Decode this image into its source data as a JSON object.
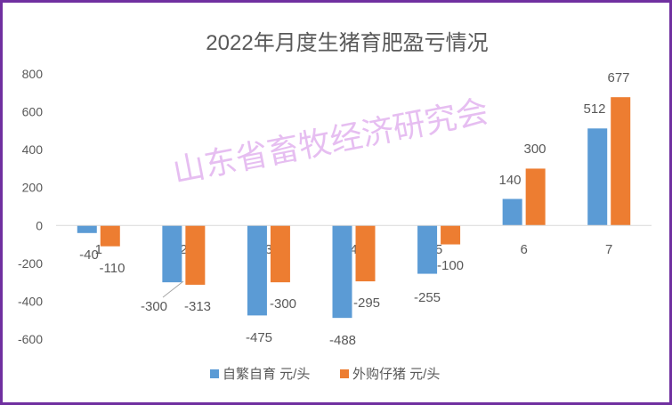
{
  "chart_data": {
    "type": "bar",
    "title": "2022年月度生猪育肥盈亏情况",
    "categories": [
      "1",
      "2",
      "3",
      "4",
      "5",
      "6",
      "7"
    ],
    "series": [
      {
        "name": "自繁自育 元/头",
        "values": [
          -40,
          -300,
          -475,
          -488,
          -255,
          140,
          512
        ],
        "color": "#5b9bd5"
      },
      {
        "name": "外购仔猪 元/头",
        "values": [
          -110,
          -313,
          -300,
          -295,
          -100,
          300,
          677
        ],
        "color": "#ed7d31"
      }
    ],
    "y_ticks": [
      "-600",
      "-400",
      "-200",
      "0",
      "200",
      "400",
      "600",
      "800"
    ],
    "ylim": [
      -600,
      800
    ],
    "data_labels": {
      "s0": [
        "-40",
        "-300",
        "-475",
        "-488",
        "-255",
        "140",
        "512"
      ],
      "s1": [
        "-110",
        "-313",
        "-300",
        "-295",
        "-100",
        "300",
        "677"
      ]
    },
    "grid": false,
    "legend_position": "bottom",
    "watermark": "山东省畜牧经济研究会"
  },
  "colors": {
    "frame": "#7030a0",
    "watermark": "#e2b3ee",
    "text": "#595959"
  }
}
